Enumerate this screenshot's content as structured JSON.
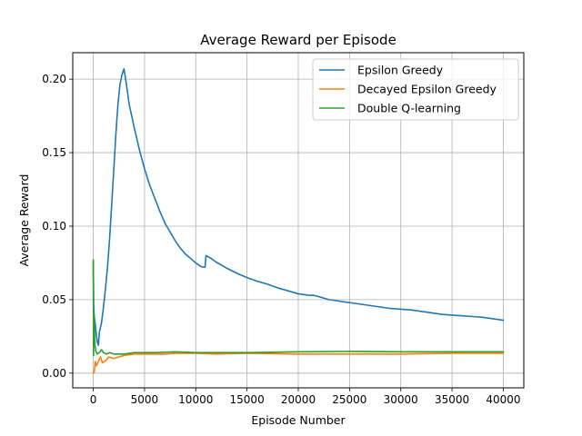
{
  "chart_data": {
    "type": "line",
    "title": "Average Reward per Episode",
    "xlabel": "Episode Number",
    "ylabel": "Average Reward",
    "xlim": [
      -2000,
      42000
    ],
    "ylim": [
      -0.01,
      0.218
    ],
    "xticks": [
      0,
      5000,
      10000,
      15000,
      20000,
      25000,
      30000,
      35000,
      40000
    ],
    "yticks": [
      0.0,
      0.05,
      0.1,
      0.15,
      0.2
    ],
    "ytick_labels": [
      "0.00",
      "0.05",
      "0.10",
      "0.15",
      "0.20"
    ],
    "grid": true,
    "legend_position": "top-right",
    "series": [
      {
        "name": "Epsilon Greedy",
        "color": "#1f77b4",
        "points": [
          [
            0,
            0.076
          ],
          [
            50,
            0.045
          ],
          [
            100,
            0.038
          ],
          [
            200,
            0.033
          ],
          [
            300,
            0.026
          ],
          [
            400,
            0.021
          ],
          [
            500,
            0.019
          ],
          [
            600,
            0.028
          ],
          [
            800,
            0.034
          ],
          [
            1000,
            0.045
          ],
          [
            1200,
            0.058
          ],
          [
            1400,
            0.073
          ],
          [
            1600,
            0.092
          ],
          [
            1800,
            0.115
          ],
          [
            2000,
            0.138
          ],
          [
            2200,
            0.162
          ],
          [
            2400,
            0.182
          ],
          [
            2600,
            0.196
          ],
          [
            2800,
            0.203
          ],
          [
            3000,
            0.207
          ],
          [
            3200,
            0.198
          ],
          [
            3500,
            0.183
          ],
          [
            4000,
            0.167
          ],
          [
            4500,
            0.152
          ],
          [
            5000,
            0.139
          ],
          [
            5500,
            0.128
          ],
          [
            6000,
            0.119
          ],
          [
            6500,
            0.11
          ],
          [
            7000,
            0.102
          ],
          [
            7500,
            0.096
          ],
          [
            8000,
            0.09
          ],
          [
            8500,
            0.085
          ],
          [
            9000,
            0.081
          ],
          [
            9500,
            0.078
          ],
          [
            10000,
            0.075
          ],
          [
            10500,
            0.0725
          ],
          [
            10900,
            0.072
          ],
          [
            11000,
            0.08
          ],
          [
            11500,
            0.078
          ],
          [
            12000,
            0.0755
          ],
          [
            13000,
            0.0715
          ],
          [
            14000,
            0.068
          ],
          [
            15000,
            0.065
          ],
          [
            16000,
            0.0625
          ],
          [
            17000,
            0.0605
          ],
          [
            18000,
            0.058
          ],
          [
            19000,
            0.056
          ],
          [
            20000,
            0.054
          ],
          [
            21000,
            0.053
          ],
          [
            21500,
            0.053
          ],
          [
            22000,
            0.052
          ],
          [
            23000,
            0.05
          ],
          [
            24000,
            0.049
          ],
          [
            25000,
            0.048
          ],
          [
            26000,
            0.047
          ],
          [
            27000,
            0.046
          ],
          [
            28000,
            0.045
          ],
          [
            29000,
            0.044
          ],
          [
            30000,
            0.0435
          ],
          [
            31000,
            0.043
          ],
          [
            32000,
            0.042
          ],
          [
            33000,
            0.041
          ],
          [
            34000,
            0.04
          ],
          [
            35000,
            0.0395
          ],
          [
            36000,
            0.039
          ],
          [
            37000,
            0.0385
          ],
          [
            38000,
            0.038
          ],
          [
            39000,
            0.037
          ],
          [
            40000,
            0.036
          ]
        ]
      },
      {
        "name": "Decayed Epsilon Greedy",
        "color": "#ff7f0e",
        "points": [
          [
            0,
            0.0
          ],
          [
            100,
            0.001
          ],
          [
            200,
            0.008
          ],
          [
            300,
            0.005
          ],
          [
            500,
            0.008
          ],
          [
            700,
            0.011
          ],
          [
            900,
            0.007
          ],
          [
            1100,
            0.008
          ],
          [
            1300,
            0.009
          ],
          [
            1500,
            0.011
          ],
          [
            2000,
            0.01
          ],
          [
            3000,
            0.012
          ],
          [
            4000,
            0.013
          ],
          [
            5000,
            0.013
          ],
          [
            6000,
            0.013
          ],
          [
            7000,
            0.013
          ],
          [
            8000,
            0.0135
          ],
          [
            10000,
            0.0135
          ],
          [
            12000,
            0.013
          ],
          [
            15000,
            0.0135
          ],
          [
            20000,
            0.013
          ],
          [
            25000,
            0.013
          ],
          [
            30000,
            0.013
          ],
          [
            35000,
            0.0135
          ],
          [
            40000,
            0.0135
          ]
        ]
      },
      {
        "name": "Double Q-learning",
        "color": "#2ca02c",
        "points": [
          [
            0,
            0.077
          ],
          [
            30,
            0.012
          ],
          [
            80,
            0.04
          ],
          [
            150,
            0.02
          ],
          [
            250,
            0.015
          ],
          [
            400,
            0.013
          ],
          [
            600,
            0.014
          ],
          [
            800,
            0.016
          ],
          [
            1000,
            0.014
          ],
          [
            1300,
            0.013
          ],
          [
            1600,
            0.014
          ],
          [
            2000,
            0.013
          ],
          [
            2500,
            0.013
          ],
          [
            3000,
            0.013
          ],
          [
            4000,
            0.014
          ],
          [
            5000,
            0.014
          ],
          [
            6000,
            0.014
          ],
          [
            8000,
            0.0145
          ],
          [
            10000,
            0.014
          ],
          [
            12000,
            0.014
          ],
          [
            15000,
            0.014
          ],
          [
            20000,
            0.0145
          ],
          [
            25000,
            0.0148
          ],
          [
            30000,
            0.0145
          ],
          [
            35000,
            0.0145
          ],
          [
            40000,
            0.0145
          ]
        ]
      }
    ]
  }
}
